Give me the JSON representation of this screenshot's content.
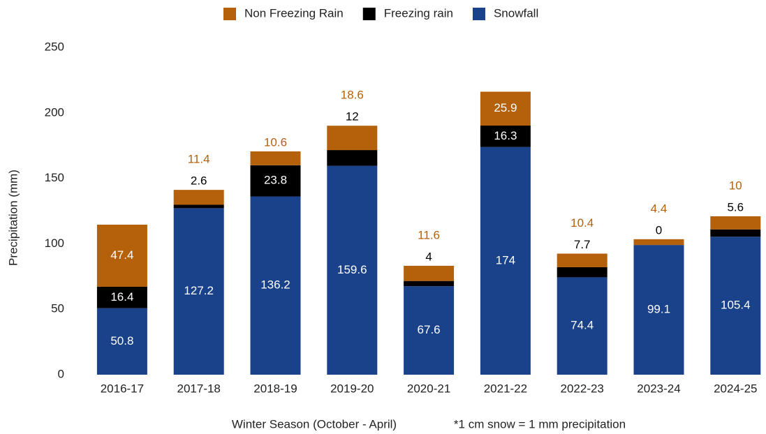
{
  "chart_data": {
    "type": "stacked_bar",
    "ylabel": "Precipitation (mm)",
    "xlabel": "Winter Season (October - April)",
    "note": "*1 cm snow = 1 mm precipitation",
    "categories": [
      "2016-17",
      "2017-18",
      "2018-19",
      "2019-20",
      "2020-21",
      "2021-22",
      "2022-23",
      "2023-24",
      "2024-25"
    ],
    "series": [
      {
        "name": "Snowfall",
        "color": "#1a428a",
        "values": [
          50.8,
          127.2,
          136.2,
          159.6,
          67.6,
          174,
          74.4,
          99.1,
          105.4
        ]
      },
      {
        "name": "Freezing rain",
        "color": "#000000",
        "values": [
          16.4,
          2.6,
          23.8,
          12,
          4,
          16.3,
          7.7,
          0,
          5.6
        ]
      },
      {
        "name": "Non Freezing Rain",
        "color": "#b5610b",
        "values": [
          47.4,
          11.4,
          10.6,
          18.6,
          11.6,
          25.9,
          10.4,
          4.4,
          10
        ]
      }
    ],
    "ylim": [
      0,
      250
    ],
    "yticks": [
      0,
      50,
      100,
      150,
      200,
      250
    ],
    "grid": false,
    "legend": "top"
  }
}
